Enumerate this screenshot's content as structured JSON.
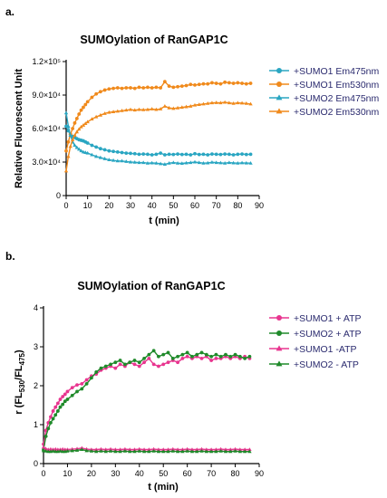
{
  "panels": {
    "a_label": "a.",
    "b_label": "b."
  },
  "chart_data": [
    {
      "type": "line",
      "title": "SUMOylation of RanGAP1C",
      "xlabel": "t (min)",
      "ylabel": "Relative Fluorescent Unit",
      "xlim": [
        0,
        90
      ],
      "ylim": [
        0,
        120000
      ],
      "xticks": [
        "0",
        "10",
        "20",
        "30",
        "40",
        "50",
        "60",
        "70",
        "80",
        "90"
      ],
      "yticks": [
        "0",
        "3.0×10⁴",
        "6.0×10⁴",
        "9.0×10⁴",
        "1.2×10⁵"
      ],
      "ytick_values": [
        0,
        30000,
        60000,
        90000,
        120000
      ],
      "legend_position": "right",
      "x": [
        0,
        1,
        2,
        3,
        4,
        5,
        6,
        7,
        8,
        9,
        10,
        12,
        14,
        16,
        18,
        20,
        22,
        24,
        26,
        28,
        30,
        32,
        34,
        36,
        38,
        40,
        42,
        44,
        46,
        48,
        50,
        52,
        54,
        56,
        58,
        60,
        62,
        64,
        66,
        68,
        70,
        72,
        74,
        76,
        78,
        80,
        82,
        84,
        86
      ],
      "series": [
        {
          "name": "+SUMO1 Em475nm",
          "color": "#2aa6c2",
          "marker": "circle",
          "values": [
            62000,
            58000,
            55000,
            53000,
            52000,
            51000,
            50000,
            49500,
            49000,
            48000,
            47000,
            45000,
            43500,
            42000,
            41000,
            40000,
            39500,
            39000,
            38500,
            38000,
            37800,
            37500,
            37000,
            37200,
            37000,
            36500,
            37000,
            38000,
            36500,
            37000,
            36800,
            37200,
            36800,
            37000,
            36500,
            37500,
            36800,
            37000,
            36500,
            37200,
            37000,
            36800,
            37200,
            37000,
            36500,
            37000,
            37200,
            36800,
            37000
          ]
        },
        {
          "name": "+SUMO1 Em530nm",
          "color": "#f08a1c",
          "marker": "circle",
          "values": [
            40000,
            48000,
            55000,
            60000,
            65000,
            69000,
            73000,
            76500,
            79000,
            81500,
            84000,
            88000,
            91000,
            93000,
            94500,
            95500,
            96000,
            96500,
            96000,
            96500,
            96500,
            96000,
            97000,
            96500,
            97000,
            96500,
            97000,
            96500,
            102000,
            98000,
            97000,
            97500,
            98000,
            98500,
            99500,
            99000,
            99500,
            100000,
            100000,
            101000,
            100500,
            100000,
            101500,
            101000,
            100500,
            101000,
            100500,
            100000,
            100500
          ]
        },
        {
          "name": "+SUMO2 Em475nm",
          "color": "#2aa6c2",
          "marker": "triangle",
          "values": [
            74000,
            62000,
            54000,
            48000,
            45000,
            43000,
            41500,
            40000,
            39000,
            38500,
            38000,
            36500,
            35000,
            34000,
            33000,
            32000,
            31500,
            31000,
            31000,
            30500,
            30000,
            29800,
            29500,
            29500,
            29000,
            29200,
            29000,
            28500,
            28000,
            29000,
            29500,
            29000,
            28800,
            29200,
            29500,
            30000,
            29500,
            29000,
            29200,
            29800,
            29500,
            29300,
            29000,
            29500,
            29200,
            29000,
            29300,
            29100,
            29000
          ]
        },
        {
          "name": "+SUMO2 Em530nm",
          "color": "#f08a1c",
          "marker": "triangle",
          "values": [
            22000,
            35000,
            44000,
            50000,
            54000,
            57000,
            59500,
            61500,
            63000,
            64500,
            66000,
            68500,
            70500,
            72000,
            73500,
            74500,
            75000,
            75500,
            76000,
            76500,
            77000,
            76500,
            77000,
            76800,
            77000,
            77500,
            77000,
            77500,
            80000,
            78500,
            78000,
            78500,
            79000,
            79500,
            80000,
            81000,
            81500,
            82000,
            82500,
            83000,
            83200,
            83000,
            83500,
            83000,
            82500,
            83000,
            82800,
            82500,
            82000
          ]
        }
      ]
    },
    {
      "type": "line",
      "title": "SUMOylation of RanGAP1C",
      "xlabel": "t (min)",
      "ylabel_main": "r (FL",
      "ylabel_sub1": "530",
      "ylabel_mid": "/FL",
      "ylabel_sub2": "475",
      "ylabel_end": ")",
      "xlim": [
        0,
        90
      ],
      "ylim": [
        0,
        4
      ],
      "xticks": [
        "0",
        "10",
        "20",
        "30",
        "40",
        "50",
        "60",
        "70",
        "80",
        "90"
      ],
      "yticks": [
        "0",
        "1",
        "2",
        "3",
        "4"
      ],
      "ytick_values": [
        0,
        1,
        2,
        3,
        4
      ],
      "legend_position": "right",
      "x": [
        0,
        1,
        2,
        3,
        4,
        5,
        6,
        7,
        8,
        9,
        10,
        12,
        14,
        16,
        18,
        20,
        22,
        24,
        26,
        28,
        30,
        32,
        34,
        36,
        38,
        40,
        42,
        44,
        46,
        48,
        50,
        52,
        54,
        56,
        58,
        60,
        62,
        64,
        66,
        68,
        70,
        72,
        74,
        76,
        78,
        80,
        82,
        84,
        86
      ],
      "series": [
        {
          "name": "+SUMO1 + ATP",
          "color": "#e8358f",
          "marker": "circle",
          "values": [
            0.5,
            0.85,
            1.05,
            1.2,
            1.35,
            1.45,
            1.55,
            1.65,
            1.72,
            1.78,
            1.85,
            1.95,
            2.02,
            2.05,
            2.15,
            2.25,
            2.3,
            2.4,
            2.45,
            2.5,
            2.45,
            2.55,
            2.5,
            2.6,
            2.55,
            2.5,
            2.6,
            2.7,
            2.55,
            2.5,
            2.55,
            2.6,
            2.65,
            2.6,
            2.7,
            2.75,
            2.7,
            2.75,
            2.7,
            2.75,
            2.65,
            2.7,
            2.7,
            2.75,
            2.7,
            2.75,
            2.7,
            2.75,
            2.7
          ]
        },
        {
          "name": "+SUMO2 + ATP",
          "color": "#1f8a2a",
          "marker": "circle",
          "values": [
            0.35,
            0.7,
            0.9,
            1.05,
            1.15,
            1.25,
            1.35,
            1.45,
            1.52,
            1.6,
            1.65,
            1.75,
            1.85,
            1.92,
            2.05,
            2.2,
            2.35,
            2.45,
            2.5,
            2.55,
            2.6,
            2.65,
            2.55,
            2.6,
            2.65,
            2.6,
            2.7,
            2.8,
            2.9,
            2.75,
            2.8,
            2.85,
            2.7,
            2.75,
            2.8,
            2.85,
            2.75,
            2.8,
            2.85,
            2.8,
            2.75,
            2.8,
            2.75,
            2.8,
            2.75,
            2.8,
            2.75,
            2.7,
            2.75
          ]
        },
        {
          "name": "+SUMO1 -ATP",
          "color": "#e8358f",
          "marker": "triangle",
          "values": [
            0.42,
            0.38,
            0.36,
            0.37,
            0.36,
            0.37,
            0.36,
            0.36,
            0.37,
            0.36,
            0.36,
            0.37,
            0.38,
            0.4,
            0.37,
            0.36,
            0.36,
            0.37,
            0.36,
            0.37,
            0.36,
            0.36,
            0.37,
            0.36,
            0.36,
            0.37,
            0.36,
            0.36,
            0.37,
            0.36,
            0.36,
            0.36,
            0.37,
            0.36,
            0.36,
            0.37,
            0.36,
            0.36,
            0.37,
            0.36,
            0.36,
            0.36,
            0.37,
            0.36,
            0.36,
            0.37,
            0.36,
            0.36,
            0.36
          ]
        },
        {
          "name": "+SUMO2 - ATP",
          "color": "#1f8a2a",
          "marker": "triangle",
          "values": [
            0.33,
            0.32,
            0.31,
            0.31,
            0.32,
            0.31,
            0.31,
            0.32,
            0.31,
            0.31,
            0.32,
            0.33,
            0.34,
            0.36,
            0.33,
            0.32,
            0.31,
            0.32,
            0.31,
            0.32,
            0.31,
            0.31,
            0.32,
            0.31,
            0.31,
            0.32,
            0.31,
            0.31,
            0.32,
            0.31,
            0.31,
            0.31,
            0.32,
            0.31,
            0.31,
            0.32,
            0.31,
            0.31,
            0.32,
            0.31,
            0.31,
            0.31,
            0.32,
            0.31,
            0.31,
            0.32,
            0.31,
            0.31,
            0.31
          ]
        }
      ]
    }
  ]
}
